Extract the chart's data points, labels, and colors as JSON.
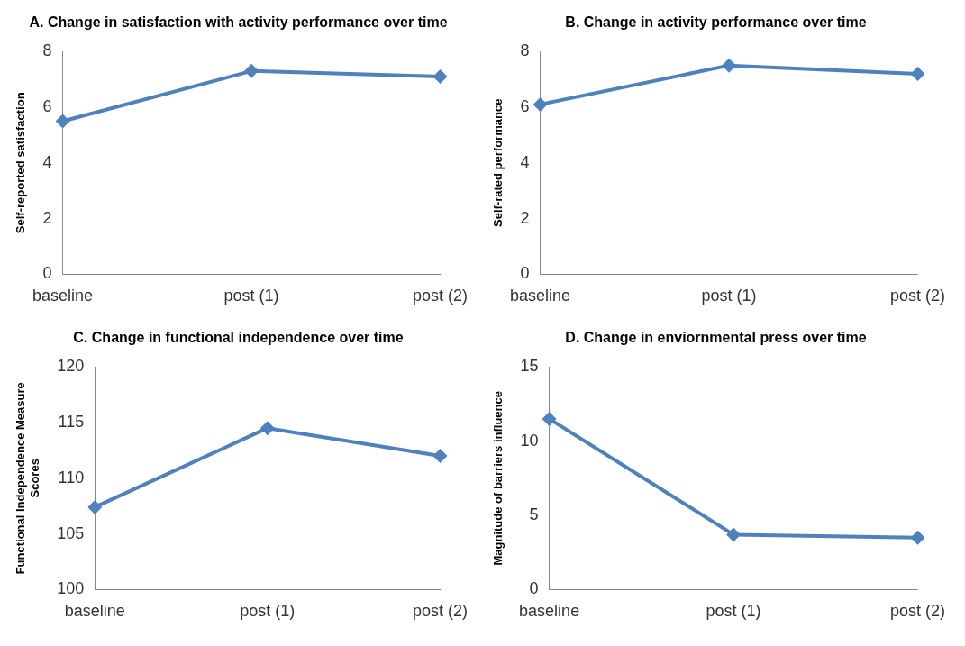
{
  "chart_data": [
    {
      "type": "line",
      "title": "A. Change in satisfaction with activity performance over time",
      "ylabel": "Self-reported satisfaction",
      "categories": [
        "baseline",
        "post (1)",
        "post (2)"
      ],
      "values": [
        5.5,
        7.3,
        7.1
      ],
      "color": "#4f81bd",
      "ylim": [
        0,
        8
      ],
      "yticks": [
        0,
        2,
        4,
        6,
        8
      ],
      "grid": false,
      "legend": false,
      "marker": "diamond",
      "line_style": "solid"
    },
    {
      "type": "line",
      "title": "B. Change in activity performance over time",
      "ylabel": "Self-rated performance",
      "categories": [
        "baseline",
        "post (1)",
        "post (2)"
      ],
      "values": [
        6.1,
        7.5,
        7.2
      ],
      "color": "#4f81bd",
      "ylim": [
        0,
        8
      ],
      "yticks": [
        0,
        2,
        4,
        6,
        8
      ],
      "grid": false,
      "legend": false,
      "marker": "diamond",
      "line_style": "solid"
    },
    {
      "type": "line",
      "title": "C. Change in functional independence over time",
      "ylabel": "Functional Independence Measure Scores",
      "categories": [
        "baseline",
        "post (1)",
        "post (2)"
      ],
      "values": [
        107.4,
        114.5,
        112
      ],
      "color": "#4f81bd",
      "ylim": [
        100,
        120
      ],
      "yticks": [
        100,
        105,
        110,
        115,
        120
      ],
      "grid": false,
      "legend": false,
      "marker": "diamond",
      "line_style": "solid"
    },
    {
      "type": "line",
      "title": "D. Change in enviornmental press over time",
      "ylabel": "Magnitude of barriers influence",
      "categories": [
        "baseline",
        "post (1)",
        "post (2)"
      ],
      "values": [
        11.5,
        3.7,
        3.5
      ],
      "color": "#4f81bd",
      "ylim": [
        0,
        15
      ],
      "yticks": [
        0,
        5,
        10,
        15
      ],
      "grid": false,
      "legend": false,
      "marker": "diamond",
      "line_style": "solid"
    }
  ]
}
